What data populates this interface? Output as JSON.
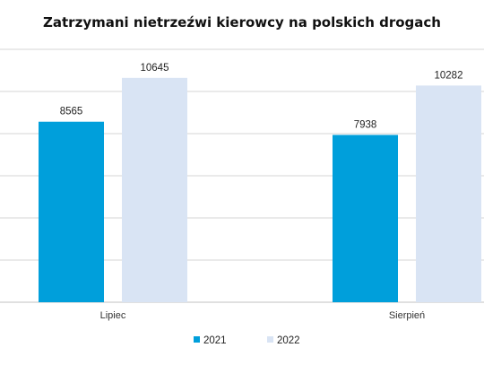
{
  "chart_data": {
    "type": "bar",
    "title": "Zatrzymani nietrzeźwi kierowcy na polskich drogach",
    "categories": [
      "Lipiec",
      "Sierpień"
    ],
    "series": [
      {
        "name": "2021",
        "values": [
          8565,
          7938
        ]
      },
      {
        "name": "2022",
        "values": [
          10645,
          10282
        ]
      }
    ],
    "ylim": [
      0,
      12000
    ],
    "grid": true,
    "legend": "bottom-center",
    "colors": {
      "2021": "#009fdb",
      "2022": "#d9e4f4",
      "grid": "#d6d6d6",
      "axis": "#c0c0c0"
    }
  }
}
